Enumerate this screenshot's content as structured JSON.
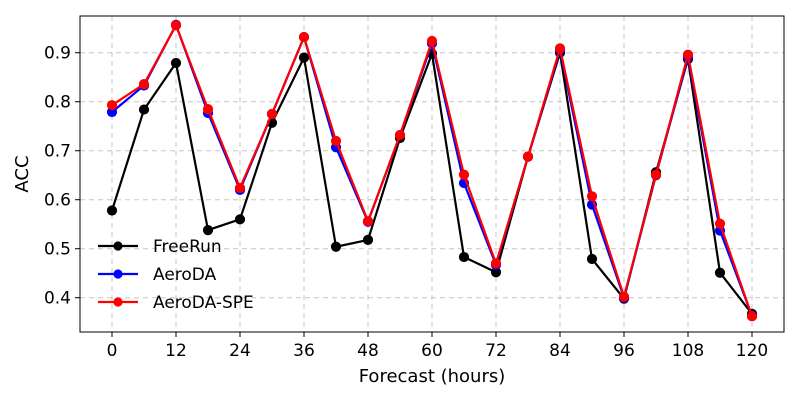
{
  "chart_data": {
    "type": "line",
    "xlabel": "Forecast (hours)",
    "ylabel": "ACC",
    "xlim": [
      -6,
      126
    ],
    "ylim": [
      0.33,
      0.975
    ],
    "xticks": [
      0,
      12,
      24,
      36,
      48,
      60,
      72,
      84,
      96,
      108,
      120
    ],
    "yticks": [
      0.4,
      0.5,
      0.6,
      0.7,
      0.8,
      0.9
    ],
    "grid": true,
    "legend_position": "lower-left",
    "x": [
      0,
      6,
      12,
      18,
      24,
      30,
      36,
      42,
      48,
      54,
      60,
      66,
      72,
      78,
      84,
      90,
      96,
      102,
      108,
      114,
      120
    ],
    "series": [
      {
        "name": "FreeRun",
        "color": "#000000",
        "values": [
          0.578,
          0.784,
          0.879,
          0.538,
          0.56,
          0.757,
          0.89,
          0.504,
          0.518,
          0.726,
          0.898,
          0.483,
          0.452,
          0.688,
          0.9,
          0.479,
          0.398,
          0.656,
          0.887,
          0.451,
          0.367
        ]
      },
      {
        "name": "AeroDA",
        "color": "#0000ff",
        "values": [
          0.779,
          0.833,
          0.957,
          0.777,
          0.62,
          0.775,
          0.932,
          0.707,
          0.555,
          0.732,
          0.919,
          0.634,
          0.467,
          0.688,
          0.905,
          0.59,
          0.4,
          0.65,
          0.891,
          0.537,
          0.363
        ]
      },
      {
        "name": "AeroDA-SPE",
        "color": "#ff0000",
        "values": [
          0.793,
          0.836,
          0.956,
          0.785,
          0.624,
          0.775,
          0.932,
          0.72,
          0.556,
          0.732,
          0.924,
          0.651,
          0.47,
          0.688,
          0.909,
          0.607,
          0.402,
          0.651,
          0.896,
          0.551,
          0.362
        ]
      }
    ]
  }
}
